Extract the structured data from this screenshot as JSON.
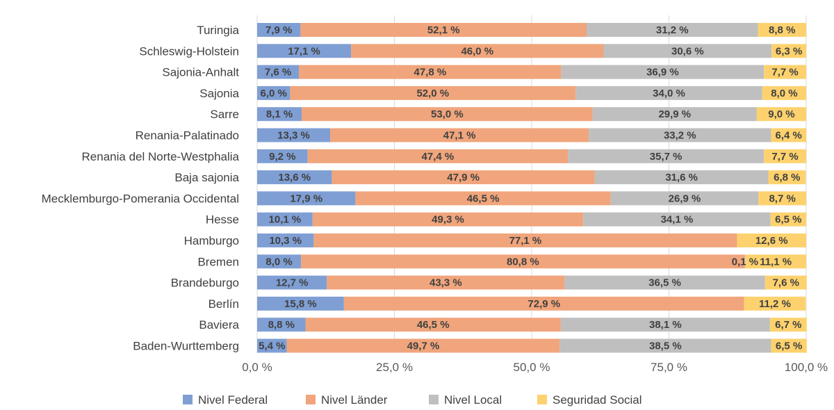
{
  "chart_data": {
    "type": "bar",
    "orientation": "horizontal",
    "stacked": "percent",
    "categories": [
      "Turingia",
      "Schleswig-Holstein",
      "Sajonia-Anhalt",
      "Sajonia",
      "Sarre",
      "Renania-Palatinado",
      "Renania del Norte-Westphalia",
      "Baja sajonia",
      "Mecklemburgo-Pomerania Occidental",
      "Hesse",
      "Hamburgo",
      "Bremen",
      "Brandeburgo",
      "Berlín",
      "Baviera",
      "Baden-Wurttemberg"
    ],
    "series": [
      {
        "name": "Nivel Federal",
        "color": "#7f9fd4",
        "values": [
          7.9,
          17.1,
          7.6,
          6.0,
          8.1,
          13.3,
          9.2,
          13.6,
          17.9,
          10.1,
          10.3,
          8.0,
          12.7,
          15.8,
          8.8,
          5.4
        ],
        "labels": [
          "7,9 %",
          "17,1 %",
          "7,6 %",
          "6,0 %",
          "8,1 %",
          "13,3 %",
          "9,2 %",
          "13,6 %",
          "17,9 %",
          "10,1 %",
          "10,3 %",
          "8,0 %",
          "12,7 %",
          "15,8 %",
          "8,8 %",
          "5,4 %"
        ]
      },
      {
        "name": "Nivel Länder",
        "color": "#f0a57c",
        "values": [
          52.1,
          46.0,
          47.8,
          52.0,
          53.0,
          47.1,
          47.4,
          47.9,
          46.5,
          49.3,
          77.1,
          80.8,
          43.3,
          72.9,
          46.5,
          49.7
        ],
        "labels": [
          "52,1 %",
          "46,0 %",
          "47,8 %",
          "52,0 %",
          "53,0 %",
          "47,1 %",
          "47,4 %",
          "47,9 %",
          "46,5 %",
          "49,3 %",
          "77,1 %",
          "80,8 %",
          "43,3 %",
          "72,9 %",
          "46,5 %",
          "49,7 %"
        ]
      },
      {
        "name": "Nivel Local",
        "color": "#bfbfbf",
        "values": [
          31.2,
          30.6,
          36.9,
          34.0,
          29.9,
          33.2,
          35.7,
          31.6,
          26.9,
          34.1,
          0,
          0.1,
          36.5,
          0,
          38.1,
          38.5
        ],
        "labels": [
          "31,2 %",
          "30,6 %",
          "36,9 %",
          "34,0 %",
          "29,9 %",
          "33,2 %",
          "35,7 %",
          "31,6 %",
          "26,9 %",
          "34,1 %",
          "",
          "0,1 %",
          "36,5 %",
          "",
          "38,1 %",
          "38,5 %"
        ]
      },
      {
        "name": "Seguridad Social",
        "color": "#fdd26e",
        "values": [
          8.8,
          6.3,
          7.7,
          8.0,
          9.0,
          6.4,
          7.7,
          6.8,
          8.7,
          6.5,
          12.6,
          11.1,
          7.6,
          11.2,
          6.7,
          6.5
        ],
        "labels": [
          "8,8 %",
          "6,3 %",
          "7,7 %",
          "8,0 %",
          "9,0 %",
          "6,4 %",
          "7,7 %",
          "6,8 %",
          "8,7 %",
          "6,5 %",
          "12,6 %",
          "11,1 %",
          "7,6 %",
          "11,2 %",
          "6,7 %",
          "6,5 %"
        ]
      }
    ],
    "xlim": [
      0,
      100
    ],
    "xticks": [
      0,
      25,
      50,
      75,
      100
    ],
    "xtick_labels": [
      "0,0 %",
      "25,0 %",
      "50,0 %",
      "75,0 %",
      "100,0 %"
    ],
    "title": "",
    "xlabel": "",
    "ylabel": "",
    "grid": true,
    "legend_position": "bottom"
  }
}
